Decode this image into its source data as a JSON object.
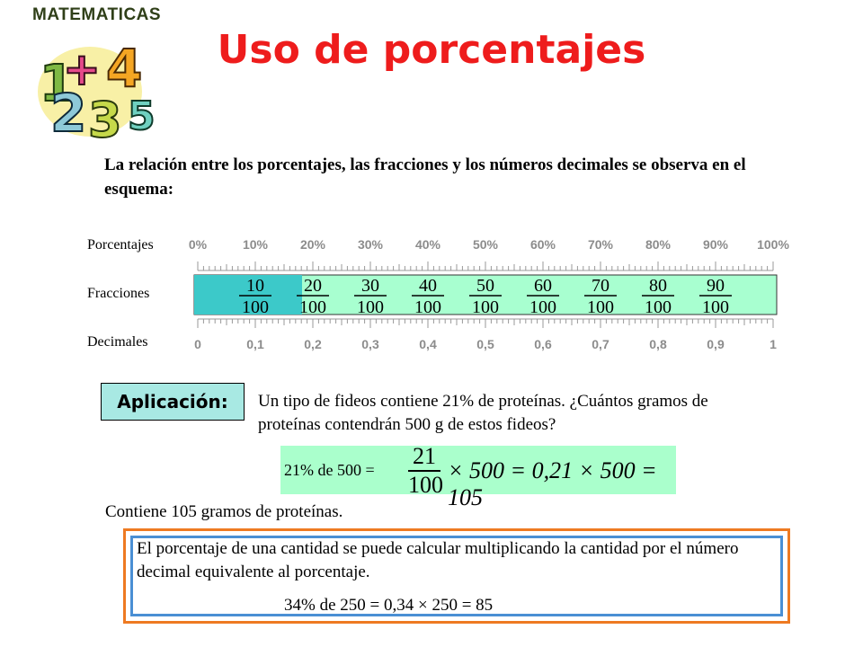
{
  "logo": {
    "text": "MATEMATICAS"
  },
  "title": "Uso de porcentajes",
  "intro": "La relación entre los porcentajes, las fracciones y los números decimales se observa en el esquema:",
  "scale": {
    "row_labels": {
      "percent": "Porcentajes",
      "fractions": "Fracciones",
      "decimals": "Decimales"
    },
    "percent_ticks": [
      "0%",
      "10%",
      "20%",
      "30%",
      "40%",
      "50%",
      "60%",
      "70%",
      "80%",
      "90%",
      "100%"
    ],
    "decimal_ticks": [
      "0",
      "0,1",
      "0,2",
      "0,3",
      "0,4",
      "0,5",
      "0,6",
      "0,7",
      "0,8",
      "0,9",
      "1"
    ],
    "fractions": [
      {
        "num": "10",
        "den": "100"
      },
      {
        "num": "20",
        "den": "100"
      },
      {
        "num": "30",
        "den": "100"
      },
      {
        "num": "40",
        "den": "100"
      },
      {
        "num": "50",
        "den": "100"
      },
      {
        "num": "60",
        "den": "100"
      },
      {
        "num": "70",
        "den": "100"
      },
      {
        "num": "80",
        "den": "100"
      },
      {
        "num": "90",
        "den": "100"
      }
    ],
    "colors": {
      "tick_text": "#8c8c8c",
      "bar_dark": "#3cc9c9",
      "bar_light": "#a8ffd0"
    }
  },
  "application": {
    "label": "Aplicación:",
    "question": "Un tipo de fideos contiene 21% de proteínas. ¿Cuántos gramos de proteínas contendrán 500 g de estos fideos?",
    "formula": {
      "lead": "21% de 500 =",
      "num": "21",
      "den": "100",
      "rest": "× 500 = 0,21 × 500 = 105"
    },
    "result": "Contiene 105 gramos de proteínas."
  },
  "rule": {
    "text": "El porcentaje de una cantidad se puede calcular multiplicando la cantidad por el número decimal equivalente al porcentaje.",
    "example": "34% de 250 = 0,34 × 250 = 85",
    "colors": {
      "outer": "#ee7a22",
      "inner": "#4a8fd4"
    }
  }
}
